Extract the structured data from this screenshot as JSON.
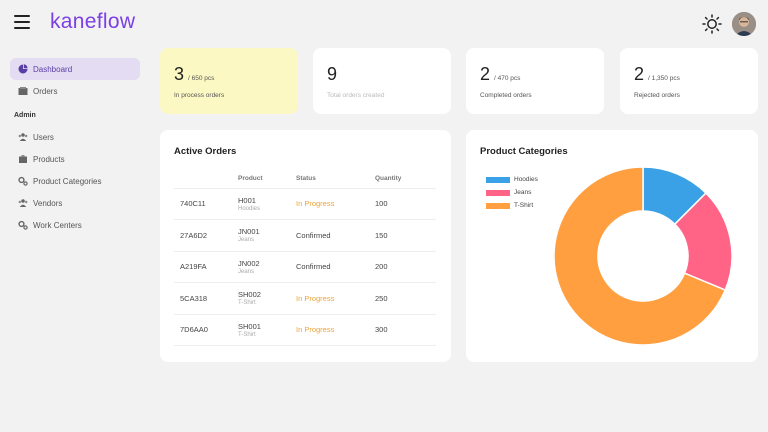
{
  "app": {
    "brand": "kaneflow"
  },
  "sidebar": {
    "items": [
      {
        "label": "Dashboard",
        "icon": "pie-chart-icon",
        "active": true
      },
      {
        "label": "Orders",
        "icon": "orders-icon",
        "active": false
      }
    ],
    "section_title": "Admin",
    "admin_items": [
      {
        "label": "Users",
        "icon": "users-icon"
      },
      {
        "label": "Products",
        "icon": "box-icon"
      },
      {
        "label": "Product Categories",
        "icon": "gears-icon"
      },
      {
        "label": "Vendors",
        "icon": "users-icon"
      },
      {
        "label": "Work Centers",
        "icon": "gears-icon"
      }
    ]
  },
  "stats": [
    {
      "value": "3",
      "sub": "/ 650 pcs",
      "caption": "In process orders"
    },
    {
      "value": "9",
      "sub": "",
      "caption": "Total orders created"
    },
    {
      "value": "2",
      "sub": "/ 470 pcs",
      "caption": "Completed orders"
    },
    {
      "value": "2",
      "sub": "/ 1,350 pcs",
      "caption": "Rejected orders"
    }
  ],
  "orders": {
    "title": "Active Orders",
    "columns": [
      "",
      "Product",
      "Status",
      "Quantity"
    ],
    "rows": [
      {
        "id": "740C11",
        "product": "H001",
        "category": "Hoodies",
        "status": "In Progress",
        "qty": "100"
      },
      {
        "id": "27A6D2",
        "product": "JN001",
        "category": "Jeans",
        "status": "Confirmed",
        "qty": "150"
      },
      {
        "id": "A219FA",
        "product": "JN002",
        "category": "Jeans",
        "status": "Confirmed",
        "qty": "200"
      },
      {
        "id": "5CA318",
        "product": "SH002",
        "category": "T-Shirt",
        "status": "In Progress",
        "qty": "250"
      },
      {
        "id": "7D6AA0",
        "product": "SH001",
        "category": "T-Shirt",
        "status": "In Progress",
        "qty": "300"
      }
    ]
  },
  "categories": {
    "title": "Product Categories",
    "colors": {
      "Hoodies": "#3aa1e6",
      "Jeans": "#ff6386",
      "T-Shirt": "#ff9f40"
    }
  },
  "chart_data": {
    "type": "pie",
    "title": "Product Categories",
    "donut": true,
    "labels": [
      "Hoodies",
      "Jeans",
      "T-Shirt"
    ],
    "values": [
      100,
      150,
      550
    ],
    "colors": [
      "#3aa1e6",
      "#ff6386",
      "#ff9f40"
    ],
    "legend": "top-left"
  },
  "colors": {
    "accent": "#7b3fe4",
    "in_progress": "#f0a33c",
    "highlight_card": "#fcf8c4"
  }
}
